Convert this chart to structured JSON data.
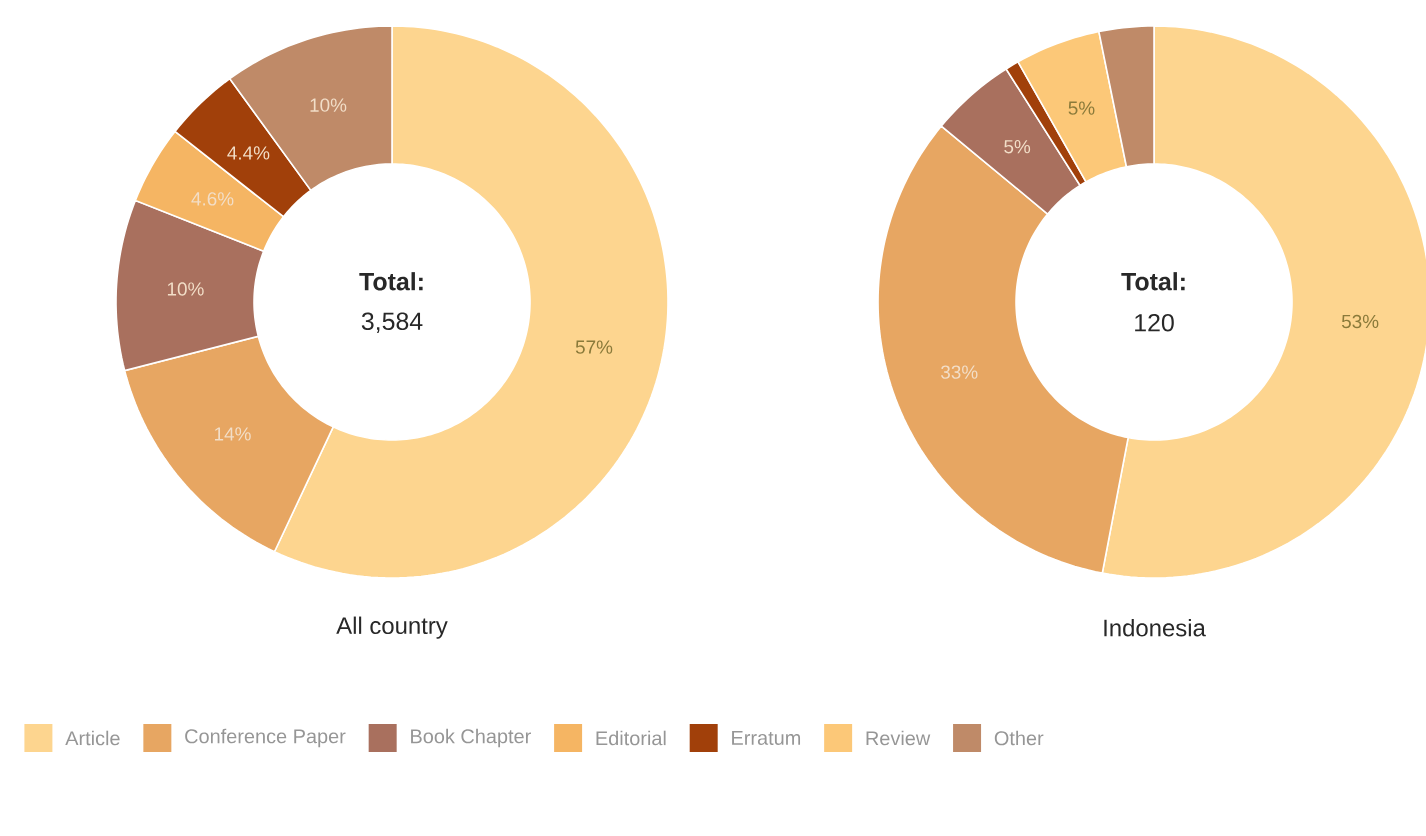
{
  "chart_data": [
    {
      "type": "donut",
      "title": "All country",
      "annotations": [
        "Total:",
        "3,584"
      ],
      "legend": "bottom",
      "categories": [
        "Article",
        "Conference Paper",
        "Book Chapter",
        "Editorial",
        "Erratum",
        "Review",
        "Other"
      ],
      "values": [
        57,
        14,
        10,
        4.6,
        4.4,
        0,
        10
      ],
      "value_labels": [
        "57%",
        "14%",
        "10%",
        "4.6%",
        "4.4%",
        null,
        "10%"
      ],
      "colors": [
        "#fdd58f",
        "#e7a662",
        "#a9705e",
        "#f5b563",
        "#a1400a",
        "#fcc878",
        "#bf8a68"
      ]
    },
    {
      "type": "donut",
      "title": "Indonesia",
      "annotations": [
        "Total:",
        "120"
      ],
      "categories": [
        null,
        null,
        null,
        null,
        null,
        null,
        null
      ],
      "values": [
        53,
        33,
        5,
        0,
        0.8,
        5,
        3.2
      ],
      "value_labels": [
        "53%",
        "33%",
        "5%",
        null,
        null,
        "5%",
        null
      ],
      "colors": [
        "#fdd58f",
        "#e7a662",
        "#a9705e",
        "#f5b563",
        "#a1400a",
        "#fcc878",
        "#bf8a68"
      ]
    }
  ]
}
